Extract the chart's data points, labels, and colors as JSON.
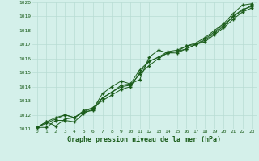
{
  "title": "Graphe pression niveau de la mer (hPa)",
  "bg_color": "#d4f0ea",
  "grid_color": "#b8dcd4",
  "line_color": "#1a5c1a",
  "marker_color": "#1a5c1a",
  "x_min": 0,
  "x_max": 23,
  "y_min": 1011,
  "y_max": 1020,
  "series": [
    [
      1011.1,
      1011.5,
      1011.2,
      1011.7,
      1011.8,
      1012.2,
      1012.5,
      1013.0,
      1013.4,
      1013.8,
      1014.0,
      1015.0,
      1015.8,
      1016.1,
      1016.5,
      1016.6,
      1016.9,
      1017.1,
      1017.5,
      1018.0,
      1018.5,
      1019.2,
      1019.8,
      1019.9
    ],
    [
      1011.1,
      1011.4,
      1011.7,
      1012.0,
      1011.8,
      1012.2,
      1012.3,
      1013.2,
      1013.6,
      1014.1,
      1014.2,
      1015.2,
      1015.8,
      1016.1,
      1016.4,
      1016.5,
      1016.9,
      1017.0,
      1017.4,
      1017.9,
      1018.4,
      1019.0,
      1019.5,
      1019.7
    ],
    [
      1011.1,
      1011.1,
      1011.6,
      1011.6,
      1011.5,
      1012.1,
      1012.4,
      1013.5,
      1014.0,
      1014.4,
      1014.2,
      1014.5,
      1016.1,
      1016.6,
      1016.4,
      1016.5,
      1016.7,
      1017.0,
      1017.2,
      1017.7,
      1018.2,
      1018.8,
      1019.3,
      1019.6
    ],
    [
      1011.1,
      1011.5,
      1011.8,
      1012.0,
      1011.8,
      1012.3,
      1012.5,
      1013.2,
      1013.6,
      1014.0,
      1014.1,
      1014.9,
      1015.5,
      1016.0,
      1016.4,
      1016.4,
      1016.7,
      1017.0,
      1017.3,
      1017.8,
      1018.3,
      1019.0,
      1019.4,
      1019.8
    ]
  ]
}
